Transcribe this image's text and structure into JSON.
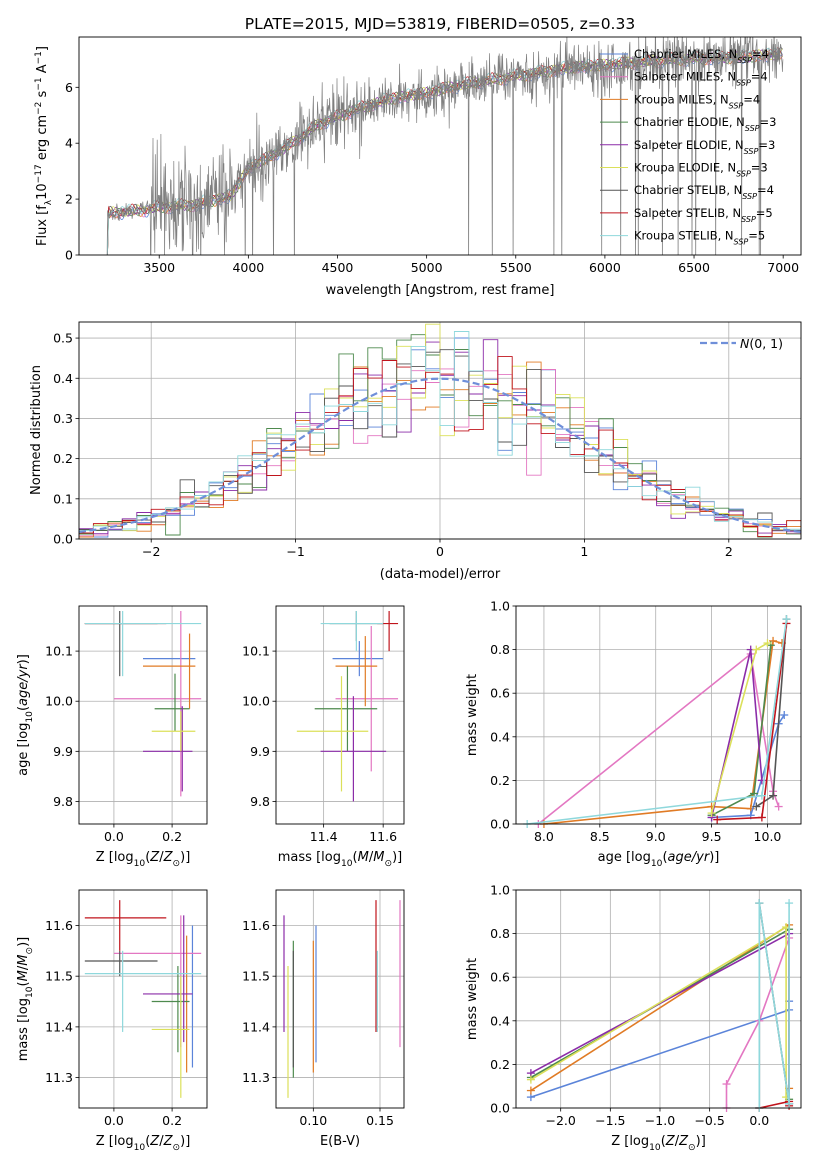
{
  "figure": {
    "title": "PLATE=2015, MJD=53819, FIBERID=0505, z=0.33"
  },
  "colors": {
    "chabrier_miles": "#5b84d9",
    "salpeter_miles": "#e377c2",
    "kroupa_miles": "#e07b25",
    "chabrier_elodie": "#4e8a4e",
    "salpeter_elodie": "#8b2ca8",
    "kroupa_elodie": "#dbe05a",
    "chabrier_stelib": "#555555",
    "salpeter_stelib": "#c0141c",
    "kroupa_stelib": "#8fd8dc",
    "data_spectrum": "#7f7f7f",
    "normal_curve": "#6f8fd9"
  },
  "chart_data": [
    {
      "id": "spectrum",
      "type": "line",
      "xlabel": "wavelength [Angstrom, rest frame]",
      "ylabel": "Flux [f",
      "xlim": [
        3050,
        7100
      ],
      "ylim": [
        0,
        7.8
      ],
      "xticks": [
        3500,
        4000,
        4500,
        5000,
        5500,
        6000,
        6500,
        7000
      ],
      "yticks": [
        0,
        2,
        4,
        6
      ],
      "legend_position": "top-right",
      "legend": [
        "Chabrier MILES, N_SSP=4",
        "Salpeter MILES, N_SSP=4",
        "Kroupa MILES, N_SSP=4",
        "Chabrier ELODIE, N_SSP=3",
        "Salpeter ELODIE, N_SSP=3",
        "Kroupa ELODIE, N_SSP=3",
        "Chabrier STELIB, N_SSP=4",
        "Salpeter STELIB, N_SSP=5",
        "Kroupa STELIB, N_SSP=5"
      ],
      "continuum": {
        "x": [
          3210,
          3400,
          3500,
          3700,
          3900,
          4000,
          4200,
          4400,
          4600,
          4800,
          5000,
          5200,
          5400,
          5600,
          5800,
          6000,
          6200,
          6400,
          6600,
          6800,
          7000
        ],
        "y": [
          1.5,
          1.6,
          1.7,
          1.8,
          2.1,
          3.1,
          3.8,
          4.7,
          5.2,
          5.6,
          5.8,
          6.1,
          6.3,
          6.5,
          6.7,
          6.8,
          6.9,
          7.0,
          7.05,
          7.1,
          7.2
        ]
      }
    },
    {
      "id": "residuals",
      "type": "step-histogram",
      "xlabel": "(data-model)/error",
      "ylabel": "Normed distribution",
      "xlim": [
        -2.5,
        2.5
      ],
      "ylim": [
        0,
        0.54
      ],
      "xticks": [
        -2,
        -1,
        0,
        1,
        2
      ],
      "yticks": [
        0.0,
        0.1,
        0.2,
        0.3,
        0.4,
        0.5
      ],
      "grid": true,
      "legend": "N(0,1)",
      "legend_position": "top-right",
      "bin_edges_start": -2.5,
      "bin_width": 0.1
    },
    {
      "id": "age_vs_Z",
      "type": "errorbar",
      "xlabel": "Z [log10(Z/Z☉)]",
      "ylabel": "age [log10(age/yr)]",
      "xlim": [
        -0.12,
        0.32
      ],
      "ylim": [
        9.755,
        10.19
      ],
      "xticks": [
        0.0,
        0.2
      ],
      "xticklabels": [
        "0.0",
        "0.2"
      ],
      "yticks": [
        9.8,
        9.9,
        10.0,
        10.1
      ],
      "points": [
        {
          "model": "chabrier_miles",
          "x": 0.19,
          "xlo": 0.1,
          "xhi": 0.28,
          "y": 10.085,
          "ylo": 10.085,
          "yhi": 10.085
        },
        {
          "model": "salpeter_miles",
          "x": 0.23,
          "xlo": 0.0,
          "xhi": 0.3,
          "y": 10.005,
          "ylo": 9.81,
          "yhi": 10.18
        },
        {
          "model": "kroupa_miles",
          "x": 0.26,
          "xlo": 0.1,
          "xhi": 0.28,
          "y": 10.07,
          "ylo": 9.985,
          "yhi": 10.135
        },
        {
          "model": "chabrier_elodie",
          "x": 0.21,
          "xlo": 0.14,
          "xhi": 0.26,
          "y": 9.985,
          "ylo": 9.94,
          "yhi": 10.055
        },
        {
          "model": "salpeter_elodie",
          "x": 0.235,
          "xlo": 0.1,
          "xhi": 0.27,
          "y": 9.9,
          "ylo": 9.82,
          "yhi": 9.99
        },
        {
          "model": "kroupa_elodie",
          "x": 0.23,
          "xlo": 0.13,
          "xhi": 0.28,
          "y": 9.94,
          "ylo": 9.9,
          "yhi": 9.98
        },
        {
          "model": "chabrier_stelib",
          "x": 0.02,
          "xlo": -0.1,
          "xhi": 0.15,
          "y": 10.155,
          "ylo": 10.05,
          "yhi": 10.18
        },
        {
          "model": "salpeter_stelib",
          "x": 0.0,
          "xlo": -0.1,
          "xhi": 0.18,
          "y": 10.155,
          "ylo": 10.155,
          "yhi": 10.155
        },
        {
          "model": "kroupa_stelib",
          "x": 0.03,
          "xlo": -0.1,
          "xhi": 0.3,
          "y": 10.155,
          "ylo": 10.05,
          "yhi": 10.18
        }
      ]
    },
    {
      "id": "age_vs_mass",
      "type": "errorbar",
      "xlabel": "mass [log10(M/M☉)]",
      "ylabel": "",
      "xlim": [
        11.24,
        11.67
      ],
      "ylim": [
        9.755,
        10.19
      ],
      "xticks": [
        11.4,
        11.6
      ],
      "xticklabels": [
        "11.4",
        "11.6"
      ],
      "yticks": [
        9.8,
        9.9,
        10.0,
        10.1
      ],
      "points": [
        {
          "model": "chabrier_miles",
          "x": 11.52,
          "xlo": 11.43,
          "xhi": 11.6,
          "y": 10.085,
          "ylo": 10.05,
          "yhi": 10.12
        },
        {
          "model": "salpeter_miles",
          "x": 11.56,
          "xlo": 11.44,
          "xhi": 11.65,
          "y": 10.005,
          "ylo": 9.86,
          "yhi": 10.15
        },
        {
          "model": "kroupa_miles",
          "x": 11.54,
          "xlo": 11.44,
          "xhi": 11.58,
          "y": 10.07,
          "ylo": 9.99,
          "yhi": 10.13
        },
        {
          "model": "chabrier_elodie",
          "x": 11.48,
          "xlo": 11.37,
          "xhi": 11.58,
          "y": 9.985,
          "ylo": 9.9,
          "yhi": 10.07
        },
        {
          "model": "salpeter_elodie",
          "x": 11.5,
          "xlo": 11.39,
          "xhi": 11.61,
          "y": 9.9,
          "ylo": 9.8,
          "yhi": 10.01
        },
        {
          "model": "kroupa_elodie",
          "x": 11.46,
          "xlo": 11.31,
          "xhi": 11.55,
          "y": 9.94,
          "ylo": 9.82,
          "yhi": 10.05
        },
        {
          "model": "chabrier_stelib",
          "x": 11.51,
          "xlo": 11.42,
          "xhi": 11.6,
          "y": 10.155,
          "ylo": 10.12,
          "yhi": 10.18
        },
        {
          "model": "salpeter_stelib",
          "x": 11.62,
          "xlo": 11.58,
          "xhi": 11.65,
          "y": 10.155,
          "ylo": 10.1,
          "yhi": 10.18
        },
        {
          "model": "kroupa_stelib",
          "x": 11.51,
          "xlo": 11.39,
          "xhi": 11.6,
          "y": 10.155,
          "ylo": 10.1,
          "yhi": 10.18
        }
      ]
    },
    {
      "id": "mass_weight_vs_age",
      "type": "line",
      "xlabel": "age [log10(age/yr)]",
      "ylabel": "mass weight",
      "xlim": [
        7.75,
        10.3
      ],
      "ylim": [
        0.0,
        1.0
      ],
      "xticks": [
        8.0,
        8.5,
        9.0,
        9.5,
        10.0
      ],
      "yticks": [
        0.0,
        0.2,
        0.4,
        0.6,
        0.8,
        1.0
      ],
      "grid": true,
      "series": [
        {
          "model": "salpeter_miles",
          "x": [
            7.95,
            9.85,
            10.05,
            10.1
          ],
          "y": [
            0.0,
            0.78,
            0.15,
            0.08
          ]
        },
        {
          "model": "kroupa_miles",
          "x": [
            8.0,
            9.5,
            9.85,
            10.05,
            10.13
          ],
          "y": [
            0.0,
            0.08,
            0.07,
            0.84,
            0.83
          ]
        },
        {
          "model": "chabrier_miles",
          "x": [
            9.5,
            9.85,
            10.1,
            10.15
          ],
          "y": [
            0.03,
            0.04,
            0.46,
            0.5
          ]
        },
        {
          "model": "chabrier_elodie",
          "x": [
            9.5,
            9.88,
            10.03
          ],
          "y": [
            0.04,
            0.14,
            0.82
          ]
        },
        {
          "model": "salpeter_elodie",
          "x": [
            9.5,
            9.85,
            9.95
          ],
          "y": [
            0.03,
            0.8,
            0.2
          ]
        },
        {
          "model": "kroupa_elodie",
          "x": [
            9.5,
            9.9,
            10.0
          ],
          "y": [
            0.05,
            0.8,
            0.83
          ]
        },
        {
          "model": "chabrier_stelib",
          "x": [
            9.9,
            10.05,
            10.17
          ],
          "y": [
            0.08,
            0.13,
            0.94
          ]
        },
        {
          "model": "salpeter_stelib",
          "x": [
            9.55,
            9.95,
            10.17
          ],
          "y": [
            0.02,
            0.03,
            0.92
          ]
        },
        {
          "model": "kroupa_stelib",
          "x": [
            7.85,
            9.95,
            10.17
          ],
          "y": [
            0.0,
            0.13,
            0.94
          ]
        }
      ]
    },
    {
      "id": "mass_vs_Z",
      "type": "errorbar",
      "xlabel": "Z [log10(Z/Z☉)]",
      "ylabel": "mass [log10(M/M☉)]",
      "xlim": [
        -0.12,
        0.32
      ],
      "ylim": [
        11.24,
        11.67
      ],
      "xticks": [
        0.0,
        0.2
      ],
      "xticklabels": [
        "0.0",
        "0.2"
      ],
      "yticks": [
        11.3,
        11.4,
        11.5,
        11.6
      ],
      "points": [
        {
          "model": "chabrier_miles",
          "x": 0.27,
          "xlo": 0.27,
          "xhi": 0.27,
          "y": 11.5,
          "ylo": 11.32,
          "yhi": 11.6
        },
        {
          "model": "salpeter_miles",
          "x": 0.23,
          "xlo": 0.0,
          "xhi": 0.3,
          "y": 11.545,
          "ylo": 11.36,
          "yhi": 11.62
        },
        {
          "model": "kroupa_miles",
          "x": 0.25,
          "xlo": 0.25,
          "xhi": 0.25,
          "y": 11.45,
          "ylo": 11.31,
          "yhi": 11.58
        },
        {
          "model": "chabrier_elodie",
          "x": 0.22,
          "xlo": 0.13,
          "xhi": 0.26,
          "y": 11.45,
          "ylo": 11.35,
          "yhi": 11.52
        },
        {
          "model": "salpeter_elodie",
          "x": 0.24,
          "xlo": 0.1,
          "xhi": 0.27,
          "y": 11.465,
          "ylo": 11.37,
          "yhi": 11.62
        },
        {
          "model": "kroupa_elodie",
          "x": 0.23,
          "xlo": 0.13,
          "xhi": 0.26,
          "y": 11.395,
          "ylo": 11.26,
          "yhi": 11.5
        },
        {
          "model": "chabrier_stelib",
          "x": 0.02,
          "xlo": -0.1,
          "xhi": 0.15,
          "y": 11.53,
          "ylo": 11.5,
          "yhi": 11.55
        },
        {
          "model": "salpeter_stelib",
          "x": 0.02,
          "xlo": -0.1,
          "xhi": 0.18,
          "y": 11.615,
          "ylo": 11.55,
          "yhi": 11.65
        },
        {
          "model": "kroupa_stelib",
          "x": 0.03,
          "xlo": -0.1,
          "xhi": 0.3,
          "y": 11.505,
          "ylo": 11.39,
          "yhi": 11.55
        }
      ]
    },
    {
      "id": "mass_vs_ebv",
      "type": "errorbar",
      "xlabel": "E(B-V)",
      "ylabel": "",
      "xlim": [
        0.072,
        0.168
      ],
      "ylim": [
        11.24,
        11.67
      ],
      "xticks": [
        0.1,
        0.15
      ],
      "xticklabels": [
        "0.10",
        "0.15"
      ],
      "yticks": [
        11.3,
        11.4,
        11.5,
        11.6
      ],
      "points": [
        {
          "model": "salpeter_elodie",
          "x": 0.078,
          "ylo": 11.39,
          "yhi": 11.62
        },
        {
          "model": "kroupa_elodie",
          "x": 0.081,
          "ylo": 11.26,
          "yhi": 11.52
        },
        {
          "model": "chabrier_elodie",
          "x": 0.085,
          "ylo": 11.3,
          "yhi": 11.57
        },
        {
          "model": "chabrier_stelib",
          "x": 0.085,
          "ylo": 11.32,
          "yhi": 11.55
        },
        {
          "model": "kroupa_miles",
          "x": 0.1,
          "ylo": 11.31,
          "yhi": 11.57
        },
        {
          "model": "chabrier_miles",
          "x": 0.102,
          "ylo": 11.33,
          "yhi": 11.6
        },
        {
          "model": "salpeter_stelib",
          "x": 0.147,
          "ylo": 11.39,
          "yhi": 11.65
        },
        {
          "model": "kroupa_stelib",
          "x": 0.148,
          "ylo": 11.39,
          "yhi": 11.55
        },
        {
          "model": "salpeter_miles",
          "x": 0.165,
          "ylo": 11.36,
          "yhi": 11.65
        }
      ]
    },
    {
      "id": "mass_weight_vs_Z",
      "type": "line",
      "xlabel": "Z [log10(Z/Z☉)]",
      "ylabel": "mass weight",
      "xlim": [
        -2.45,
        0.42
      ],
      "ylim": [
        0.0,
        1.0
      ],
      "xticks": [
        -2.0,
        -1.5,
        -1.0,
        -0.5,
        0.0
      ],
      "yticks": [
        0.0,
        0.2,
        0.4,
        0.6,
        0.8,
        1.0
      ],
      "grid": true,
      "series": [
        {
          "model": "chabrier_miles",
          "x": [
            -2.3,
            0.3,
            0.3
          ],
          "y": [
            0.05,
            0.45,
            0.49
          ]
        },
        {
          "model": "salpeter_miles",
          "x": [
            -0.33,
            -0.33,
            0.0,
            0.3
          ],
          "y": [
            0.0,
            0.11,
            0.4,
            0.78
          ]
        },
        {
          "model": "kroupa_miles",
          "x": [
            -2.3,
            0.3,
            0.3
          ],
          "y": [
            0.08,
            0.84,
            0.09
          ]
        },
        {
          "model": "chabrier_elodie",
          "x": [
            -2.3,
            0.3,
            0.3
          ],
          "y": [
            0.14,
            0.82,
            0.04
          ]
        },
        {
          "model": "salpeter_elodie",
          "x": [
            -2.3,
            0.3,
            0.3
          ],
          "y": [
            0.16,
            0.8,
            0.02
          ]
        },
        {
          "model": "kroupa_elodie",
          "x": [
            -2.3,
            0.27,
            0.27
          ],
          "y": [
            0.13,
            0.83,
            0.05
          ]
        },
        {
          "model": "chabrier_stelib",
          "x": [
            0.0,
            0.0,
            0.3
          ],
          "y": [
            0.0,
            0.94,
            0.02
          ]
        },
        {
          "model": "salpeter_stelib",
          "x": [
            0.0,
            0.3,
            0.3
          ],
          "y": [
            0.0,
            0.03,
            0.01
          ]
        },
        {
          "model": "kroupa_stelib",
          "x": [
            0.0,
            0.0,
            0.3,
            0.3
          ],
          "y": [
            0.0,
            0.94,
            0.02,
            0.94
          ]
        }
      ]
    }
  ]
}
